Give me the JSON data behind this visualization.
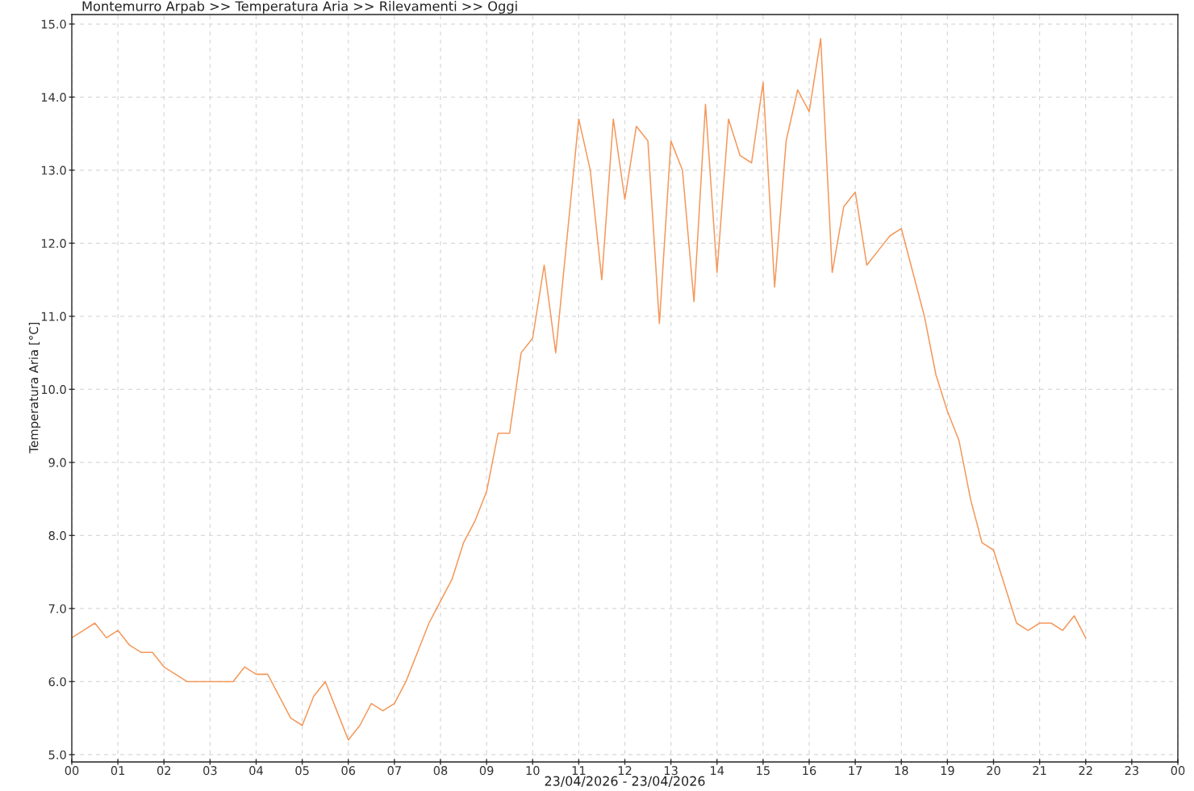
{
  "chart_data": {
    "type": "line",
    "title": "Montemurro Arpab >> Temperatura Aria >> Rilevamenti >> Oggi",
    "xlabel": "23/04/2026 - 23/04/2026",
    "ylabel": "Temperatura Aria [°C]",
    "x": [
      0.0,
      0.25,
      0.5,
      0.75,
      1.0,
      1.25,
      1.5,
      1.75,
      2.0,
      2.25,
      2.5,
      2.75,
      3.0,
      3.25,
      3.5,
      3.75,
      4.0,
      4.25,
      4.5,
      4.75,
      5.0,
      5.25,
      5.5,
      5.75,
      6.0,
      6.25,
      6.5,
      6.75,
      7.0,
      7.25,
      7.5,
      7.75,
      8.0,
      8.25,
      8.5,
      8.75,
      9.0,
      9.25,
      9.5,
      9.75,
      10.0,
      10.25,
      10.5,
      10.75,
      11.0,
      11.25,
      11.5,
      11.75,
      12.0,
      12.25,
      12.5,
      12.75,
      13.0,
      13.25,
      13.5,
      13.75,
      14.0,
      14.25,
      14.5,
      14.75,
      15.0,
      15.25,
      15.5,
      15.75,
      16.0,
      16.25,
      16.5,
      16.75,
      17.0,
      17.25,
      17.5,
      17.75,
      18.0,
      18.25,
      18.5,
      18.75,
      19.0,
      19.25,
      19.5,
      19.75,
      20.0,
      20.25,
      20.5,
      20.75,
      21.0,
      21.25,
      21.5,
      21.75,
      22.0
    ],
    "series": [
      {
        "color": "#f4985a",
        "values": [
          6.6,
          6.7,
          6.8,
          6.6,
          6.7,
          6.5,
          6.4,
          6.4,
          6.2,
          6.1,
          6.0,
          6.0,
          6.0,
          6.0,
          6.0,
          6.2,
          6.1,
          6.1,
          5.8,
          5.5,
          5.4,
          5.8,
          6.0,
          5.6,
          5.2,
          5.4,
          5.7,
          5.6,
          5.7,
          6.0,
          6.4,
          6.8,
          7.1,
          7.4,
          7.9,
          8.2,
          8.6,
          9.4,
          9.4,
          10.5,
          10.7,
          11.7,
          10.5,
          12.1,
          13.7,
          13.0,
          11.5,
          13.7,
          12.6,
          13.6,
          13.4,
          10.9,
          13.4,
          13.0,
          11.2,
          13.9,
          11.6,
          13.7,
          13.2,
          13.1,
          14.2,
          11.4,
          13.4,
          14.1,
          13.8,
          14.8,
          11.6,
          12.5,
          12.7,
          11.7,
          11.9,
          12.1,
          12.2,
          11.6,
          11.0,
          10.2,
          9.7,
          9.3,
          8.5,
          7.9,
          7.8,
          7.3,
          6.8,
          6.7,
          6.8,
          6.8,
          6.7,
          6.9,
          6.6
        ]
      }
    ],
    "xlim": [
      0,
      24
    ],
    "ylim": [
      4.9,
      15.13
    ],
    "xticks": [
      {
        "value": 0,
        "label": "00"
      },
      {
        "value": 1,
        "label": "01"
      },
      {
        "value": 2,
        "label": "02"
      },
      {
        "value": 3,
        "label": "03"
      },
      {
        "value": 4,
        "label": "04"
      },
      {
        "value": 5,
        "label": "05"
      },
      {
        "value": 6,
        "label": "06"
      },
      {
        "value": 7,
        "label": "07"
      },
      {
        "value": 8,
        "label": "08"
      },
      {
        "value": 9,
        "label": "09"
      },
      {
        "value": 10,
        "label": "10"
      },
      {
        "value": 11,
        "label": "11"
      },
      {
        "value": 12,
        "label": "12"
      },
      {
        "value": 13,
        "label": "13"
      },
      {
        "value": 14,
        "label": "14"
      },
      {
        "value": 15,
        "label": "15"
      },
      {
        "value": 16,
        "label": "16"
      },
      {
        "value": 17,
        "label": "17"
      },
      {
        "value": 18,
        "label": "18"
      },
      {
        "value": 19,
        "label": "19"
      },
      {
        "value": 20,
        "label": "20"
      },
      {
        "value": 21,
        "label": "21"
      },
      {
        "value": 22,
        "label": "22"
      },
      {
        "value": 23,
        "label": "23"
      },
      {
        "value": 24,
        "label": "00"
      }
    ],
    "yticks": [
      {
        "value": 5,
        "label": "5.0"
      },
      {
        "value": 6,
        "label": "6.0"
      },
      {
        "value": 7,
        "label": "7.0"
      },
      {
        "value": 8,
        "label": "8.0"
      },
      {
        "value": 9,
        "label": "9.0"
      },
      {
        "value": 10,
        "label": "10.0"
      },
      {
        "value": 11,
        "label": "11.0"
      },
      {
        "value": 12,
        "label": "12.0"
      },
      {
        "value": 13,
        "label": "13.0"
      },
      {
        "value": 14,
        "label": "14.0"
      },
      {
        "value": 15,
        "label": "15.0"
      }
    ],
    "grid": true,
    "line_style": "solid"
  }
}
